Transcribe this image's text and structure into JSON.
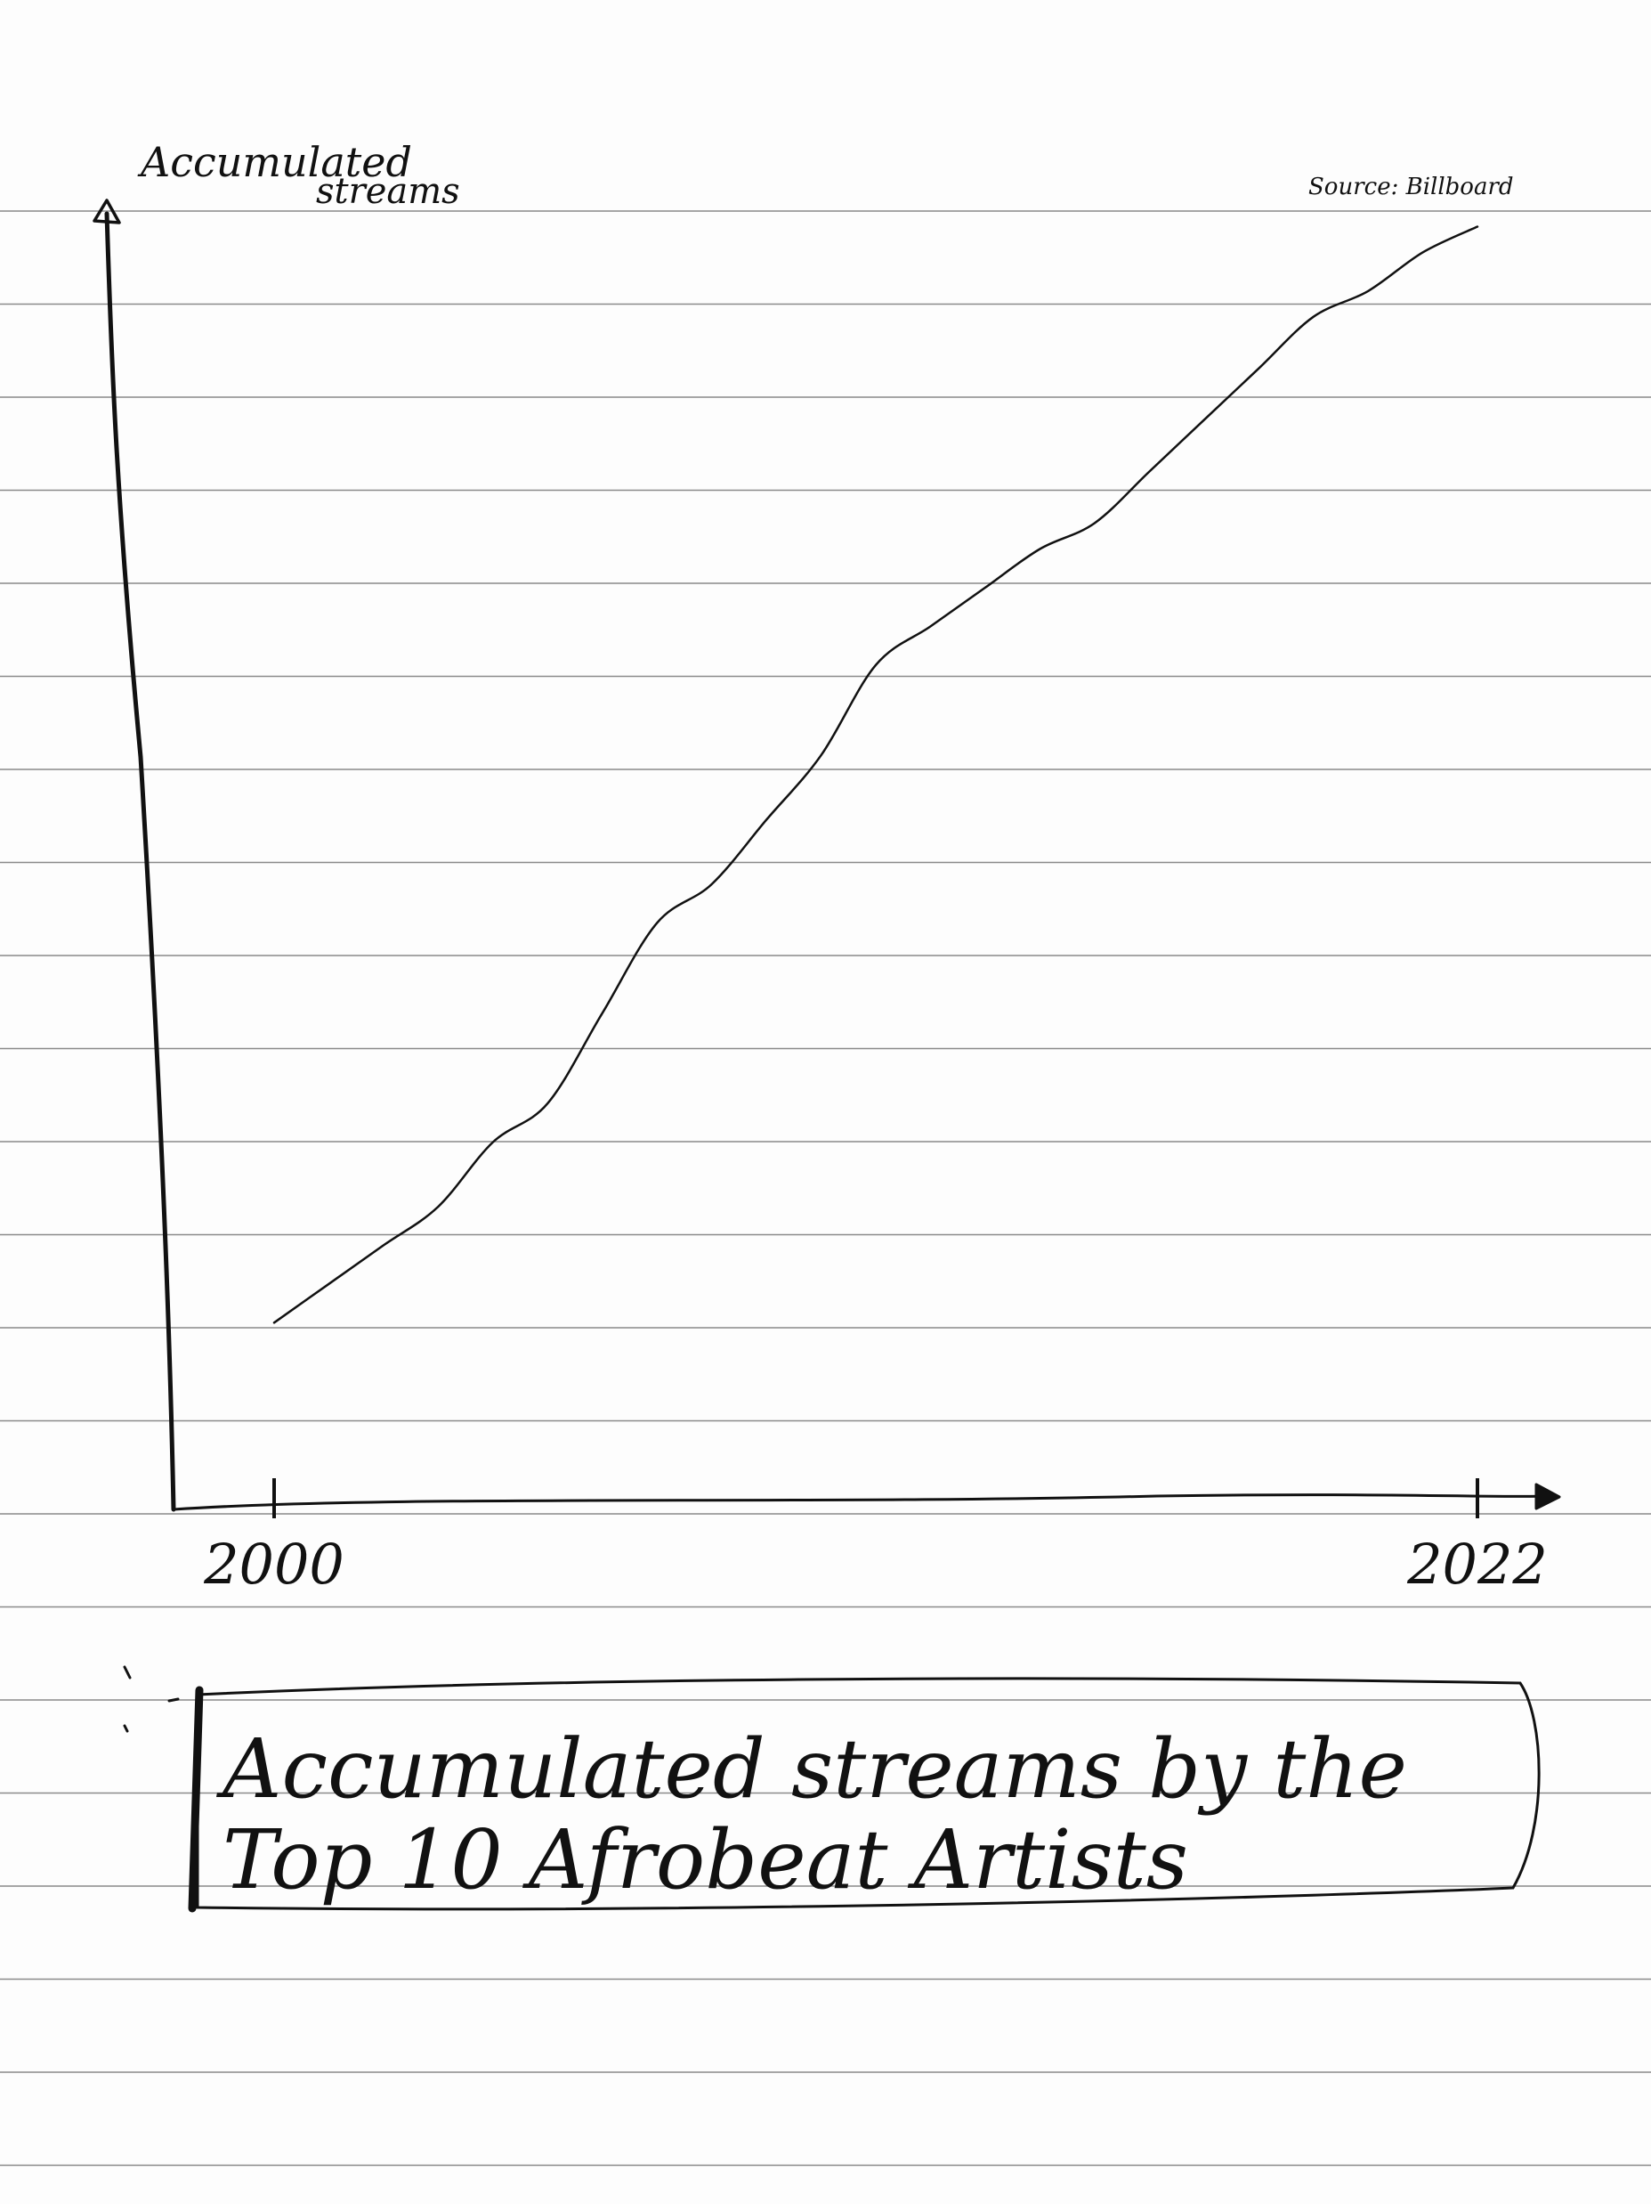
{
  "chart_data": {
    "type": "line",
    "title": "Accumulated streams by the Top 10 Afrobeat Artists",
    "title_lines": [
      "Accumulated streams by the",
      "Top 10 Afrobeat Artists"
    ],
    "ylabel_lines": [
      "Accumulated",
      "streams"
    ],
    "xlabel": "",
    "source": "Source: Billboard",
    "x_ticks": [
      "2000",
      "2022"
    ],
    "y_ticks": [],
    "grid": false,
    "legend": "none",
    "xlim": [
      1999,
      2023.2
    ],
    "ylim": [
      0,
      100
    ],
    "series": [
      {
        "x": [
          2000,
          2001,
          2002,
          2003,
          2004,
          2005,
          2006,
          2007,
          2008,
          2009,
          2010,
          2011,
          2012,
          2013,
          2014,
          2015,
          2016,
          2017,
          2018,
          2019,
          2020,
          2021,
          2022
        ],
        "values": [
          14,
          17,
          20,
          23,
          28,
          31,
          38,
          45,
          48,
          53,
          58,
          65,
          68,
          71,
          74,
          76,
          80,
          84,
          88,
          92,
          94,
          97,
          99
        ],
        "color": "#111111"
      }
    ]
  },
  "colors": {
    "ink": "#111111",
    "rule_line": "#8a8a8a",
    "paper": "#fdfdfd"
  }
}
